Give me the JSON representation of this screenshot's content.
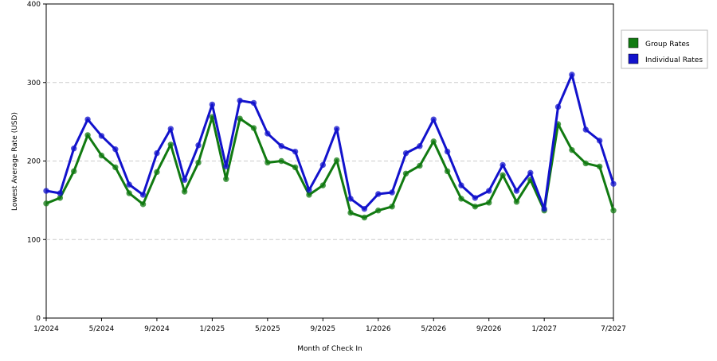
{
  "chart_data": {
    "type": "line",
    "x_label": "Month of Check In",
    "y_label": "Lowest Average Rate (USD)",
    "categories": [
      "1/2024",
      null,
      null,
      null,
      "5/2024",
      null,
      null,
      null,
      "9/2024",
      null,
      null,
      null,
      "1/2025",
      null,
      null,
      null,
      "5/2025",
      null,
      null,
      null,
      "9/2025",
      null,
      null,
      null,
      "1/2026",
      null,
      null,
      null,
      "5/2026",
      null,
      null,
      null,
      "9/2026",
      null,
      null,
      null,
      "1/2027",
      null,
      null,
      null,
      null,
      "7/2027"
    ],
    "series": [
      {
        "name": "Group Rates",
        "color": "#117a11",
        "values": [
          146,
          153,
          187,
          233,
          207,
          192,
          159,
          145,
          186,
          221,
          161,
          198,
          256,
          177,
          254,
          242,
          198,
          200,
          192,
          157,
          169,
          201,
          134,
          128,
          137,
          142,
          184,
          194,
          225,
          187,
          152,
          142,
          147,
          182,
          148,
          176,
          137,
          247,
          214,
          197,
          193,
          137
        ]
      },
      {
        "name": "Individual Rates",
        "color": "#1212cc",
        "values": [
          162,
          159,
          216,
          253,
          232,
          215,
          170,
          157,
          210,
          241,
          176,
          220,
          272,
          193,
          277,
          274,
          235,
          219,
          212,
          163,
          195,
          241,
          152,
          139,
          158,
          160,
          210,
          219,
          253,
          212,
          169,
          153,
          162,
          195,
          162,
          185,
          139,
          269,
          310,
          240,
          226,
          171
        ]
      }
    ],
    "ylim": [
      0,
      400
    ],
    "yticks": [
      0,
      100,
      200,
      300,
      400
    ],
    "grid": true,
    "legend": "right"
  }
}
